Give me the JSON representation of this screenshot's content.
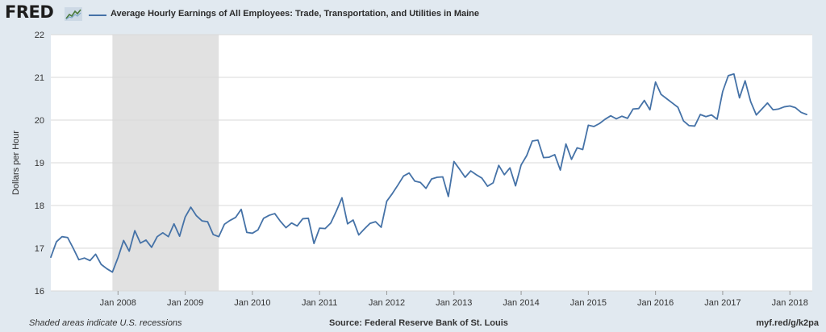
{
  "header": {
    "logo_text": "FRED",
    "logo_icon": "fred-chart-badge-icon",
    "series_title": "Average Hourly Earnings of All Employees: Trade, Transportation, and Utilities in Maine"
  },
  "footer": {
    "recession_note": "Shaded areas indicate U.S. recessions",
    "source": "Source: Federal Reserve Bank of St. Louis",
    "short_url": "myf.red/g/k2pa"
  },
  "colors": {
    "background": "#e1e9f0",
    "plot_background": "#ffffff",
    "line": "#4572a7",
    "recession_band": "#e1e1e1",
    "grid": "#d9d9d9"
  },
  "chart_data": {
    "type": "line",
    "title": "Average Hourly Earnings of All Employees: Trade, Transportation, and Utilities in Maine",
    "ylabel": "Dollars per Hour",
    "xlabel": "",
    "ylim": [
      16,
      22
    ],
    "yticks": [
      16,
      17,
      18,
      19,
      20,
      21,
      22
    ],
    "xlim": [
      "2007-01",
      "2018-05"
    ],
    "xticks": [
      {
        "label": "Jan 2008",
        "date": "2008-01"
      },
      {
        "label": "Jan 2009",
        "date": "2009-01"
      },
      {
        "label": "Jan 2010",
        "date": "2010-01"
      },
      {
        "label": "Jan 2011",
        "date": "2011-01"
      },
      {
        "label": "Jan 2012",
        "date": "2012-01"
      },
      {
        "label": "Jan 2013",
        "date": "2013-01"
      },
      {
        "label": "Jan 2014",
        "date": "2014-01"
      },
      {
        "label": "Jan 2015",
        "date": "2015-01"
      },
      {
        "label": "Jan 2016",
        "date": "2016-01"
      },
      {
        "label": "Jan 2017",
        "date": "2017-01"
      },
      {
        "label": "Jan 2018",
        "date": "2018-01"
      }
    ],
    "grid": true,
    "recessions": [
      {
        "start": "2007-12",
        "end": "2009-06"
      }
    ],
    "start": "2007-01",
    "frequency": "monthly",
    "values": [
      16.79,
      17.15,
      17.27,
      17.25,
      17.0,
      16.73,
      16.77,
      16.71,
      16.86,
      16.62,
      16.52,
      16.44,
      16.78,
      17.18,
      16.93,
      17.41,
      17.12,
      17.19,
      17.02,
      17.27,
      17.36,
      17.27,
      17.57,
      17.28,
      17.73,
      17.96,
      17.76,
      17.64,
      17.62,
      17.32,
      17.27,
      17.56,
      17.65,
      17.72,
      17.91,
      17.37,
      17.35,
      17.43,
      17.7,
      17.77,
      17.81,
      17.63,
      17.48,
      17.59,
      17.52,
      17.69,
      17.7,
      17.11,
      17.47,
      17.46,
      17.59,
      17.87,
      18.18,
      17.57,
      17.66,
      17.31,
      17.45,
      17.58,
      17.62,
      17.49,
      18.1,
      18.28,
      18.48,
      18.69,
      18.76,
      18.57,
      18.54,
      18.4,
      18.62,
      18.66,
      18.67,
      18.21,
      19.03,
      18.85,
      18.66,
      18.81,
      18.72,
      18.64,
      18.45,
      18.53,
      18.94,
      18.72,
      18.88,
      18.46,
      18.95,
      19.17,
      19.51,
      19.53,
      19.12,
      19.13,
      19.19,
      18.83,
      19.44,
      19.08,
      19.35,
      19.31,
      19.88,
      19.85,
      19.92,
      20.02,
      20.1,
      20.03,
      20.09,
      20.04,
      20.26,
      20.27,
      20.46,
      20.24,
      20.89,
      20.6,
      20.5,
      20.4,
      20.3,
      19.98,
      19.87,
      19.86,
      20.13,
      20.08,
      20.12,
      20.02,
      20.67,
      21.04,
      21.08,
      20.52,
      20.92,
      20.43,
      20.12,
      20.26,
      20.4,
      20.24,
      20.26,
      20.31,
      20.33,
      20.29,
      20.18,
      20.13
    ]
  }
}
